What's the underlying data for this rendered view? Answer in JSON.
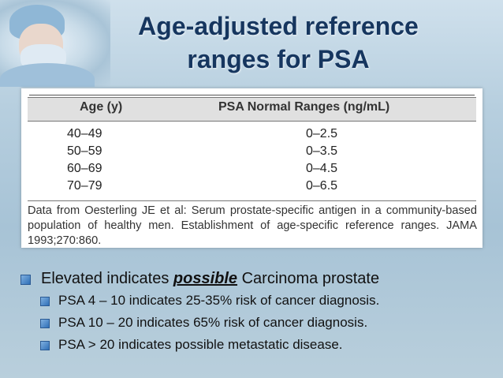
{
  "title": {
    "line1": "Age-adjusted reference",
    "line2": "ranges for PSA"
  },
  "table": {
    "headers": [
      "Age (y)",
      "PSA Normal Ranges (ng/mL)"
    ],
    "rows": [
      [
        "40–49",
        "0–2.5"
      ],
      [
        "50–59",
        "0–3.5"
      ],
      [
        "60–69",
        "0–4.5"
      ],
      [
        "70–79",
        "0–6.5"
      ]
    ],
    "source": "Data from Oesterling JE et al: Serum prostate-specific antigen in a community-based population of healthy men. Establishment of age-specific reference ranges. JAMA 1993;270:860."
  },
  "bullets": {
    "main": {
      "pre": "Elevated indicates ",
      "emph": "possible",
      "post": " Carcinoma prostate"
    },
    "subs": [
      "PSA 4 – 10 indicates 25-35% risk of cancer diagnosis.",
      "PSA 10 – 20 indicates 65% risk of cancer diagnosis.",
      "PSA > 20 indicates possible metastatic disease."
    ]
  },
  "icons": {
    "photo": "doctor-photo-icon",
    "bullet": "square-bullet-icon"
  },
  "colors": {
    "title": "#16365f",
    "bullet": "#2f6fb7"
  }
}
